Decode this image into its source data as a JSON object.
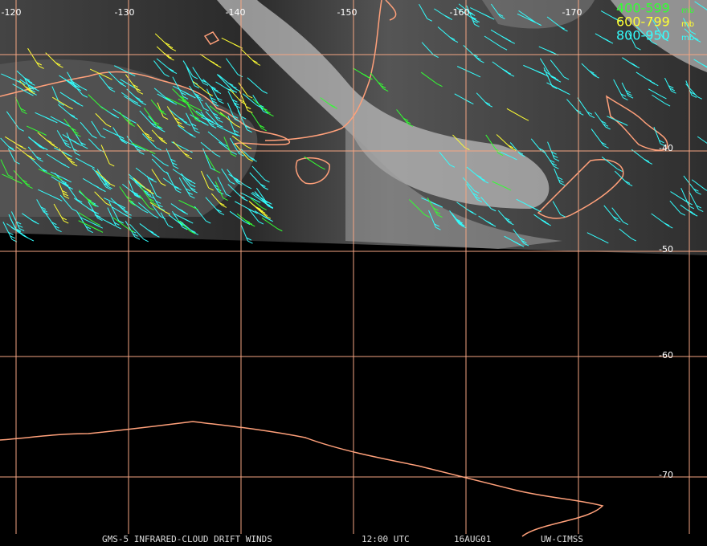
{
  "map": {
    "longitude_labels": [
      "-120",
      "-130",
      "-140",
      "-150",
      "-160",
      "-170"
    ],
    "latitude_labels": [
      "-40",
      "-50",
      "-60",
      "-70"
    ],
    "legend": [
      {
        "range": "400-599",
        "unit": "mb",
        "color": "#33ff33"
      },
      {
        "range": "600-799",
        "unit": "mb",
        "color": "#ffff33"
      },
      {
        "range": "800-950",
        "unit": "mb",
        "color": "#33ffff"
      }
    ],
    "footer": [
      "GMS-5 INFRARED-CLOUD DRIFT WINDS",
      "12:00 UTC",
      "16AUG01",
      "UW-CIMSS"
    ]
  }
}
